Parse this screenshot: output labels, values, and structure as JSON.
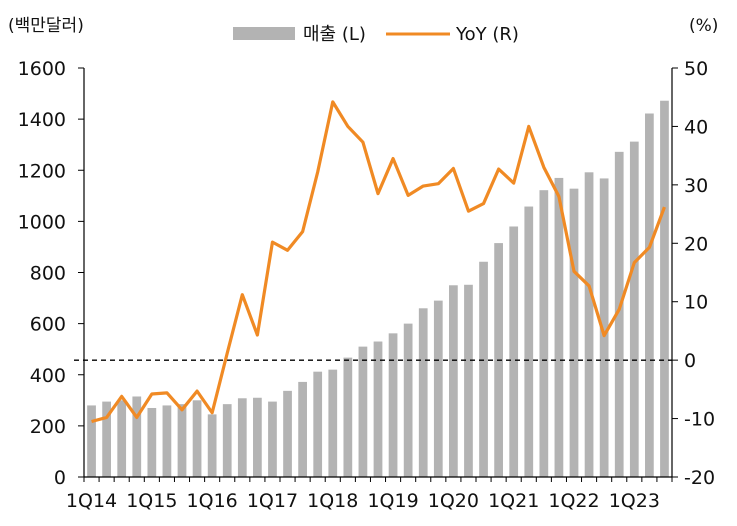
{
  "chart_data": {
    "type": "bar+line",
    "left_unit": "(백만달러)",
    "right_unit": "(%)",
    "legend": {
      "bar_label": "매출 (L)",
      "line_label": "YoY (R)"
    },
    "colors": {
      "bar": "#b3b3b3",
      "line": "#f08a24",
      "zero_line": "#000000"
    },
    "x_ticks": [
      "1Q14",
      "1Q15",
      "1Q16",
      "1Q17",
      "1Q18",
      "1Q19",
      "1Q20",
      "1Q21",
      "1Q22",
      "1Q23"
    ],
    "left_axis": {
      "min": 0,
      "max": 1600,
      "ticks": [
        "0",
        "200",
        "400",
        "600",
        "800",
        "1000",
        "1200",
        "1400",
        "1600"
      ]
    },
    "right_axis": {
      "min": -20,
      "max": 50,
      "ticks": [
        "-20",
        "-10",
        "0",
        "10",
        "20",
        "30",
        "40",
        "50"
      ]
    },
    "series": [
      {
        "name": "매출 (L)",
        "type": "bar",
        "values": [
          280,
          295,
          300,
          315,
          270,
          280,
          285,
          300,
          245,
          285,
          308,
          310,
          295,
          337,
          372,
          412,
          420,
          467,
          510,
          530,
          562,
          600,
          660,
          690,
          750,
          752,
          842,
          915,
          980,
          1058,
          1122,
          1170,
          1128,
          1192,
          1168,
          1272,
          1312,
          1422,
          1472
        ]
      },
      {
        "name": "YoY (R)",
        "type": "line",
        "values": [
          -10.5,
          -9.8,
          -6.2,
          -9.8,
          -5.8,
          -5.6,
          -8.5,
          -5.3,
          -9.0,
          1.2,
          11.2,
          4.3,
          20.2,
          18.8,
          22.0,
          32.2,
          44.2,
          40.0,
          37.3,
          28.5,
          34.5,
          28.2,
          29.8,
          30.2,
          32.8,
          25.5,
          26.8,
          32.7,
          30.3,
          40.0,
          33.0,
          28.0,
          15.2,
          12.7,
          4.2,
          8.7,
          16.7,
          19.3,
          26.2
        ]
      }
    ]
  }
}
